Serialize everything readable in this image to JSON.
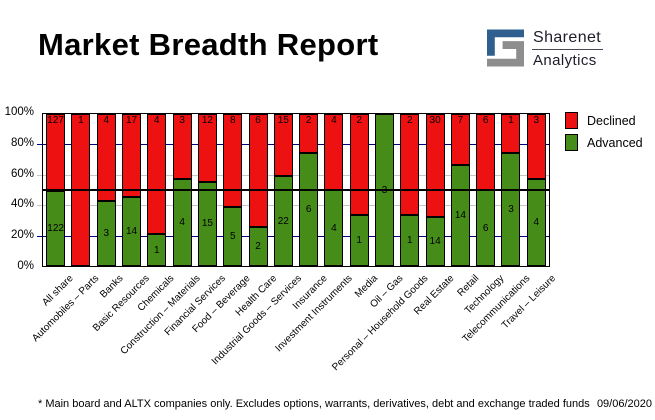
{
  "title": "Market Breadth Report",
  "logo": {
    "line1": "Sharenet",
    "line2": "Analytics",
    "blue": "#2f5f8f",
    "gray": "#8e8e8e"
  },
  "chart_data": {
    "type": "bar",
    "stacked": true,
    "stacking": "percent",
    "title": "Market Breadth Report",
    "categories": [
      "All share",
      "Automobiles – Parts",
      "Banks",
      "Basic Resources",
      "Chemicals",
      "Construction – Materials",
      "Financial Services",
      "Food – Beverage",
      "Health Care",
      "Industrial Goods – Services",
      "Insurance",
      "Investment Instruments",
      "Media",
      "Oil – Gas",
      "Personal – Household Goods",
      "Real Estate",
      "Retail",
      "Technology",
      "Telecommunications",
      "Travel – Leisure"
    ],
    "series": [
      {
        "name": "Declined",
        "color": "#ee1111",
        "values": [
          127,
          1,
          4,
          17,
          4,
          3,
          12,
          8,
          6,
          15,
          2,
          4,
          2,
          0,
          2,
          30,
          7,
          6,
          1,
          3
        ]
      },
      {
        "name": "Advanced",
        "color": "#468c19",
        "values": [
          122,
          0,
          3,
          14,
          1,
          4,
          15,
          5,
          2,
          22,
          6,
          4,
          1,
          3,
          1,
          14,
          14,
          6,
          3,
          4
        ]
      }
    ],
    "yticks": [
      "0%",
      "20%",
      "40%",
      "60%",
      "80%",
      "100%"
    ],
    "ylim": [
      0,
      100
    ],
    "gridlines": {
      "navy_levels": [
        20,
        80
      ],
      "silver_levels": [
        40,
        60
      ],
      "midline_level": 50,
      "navy_color": "#000080",
      "silver_color": "#c6c6c6",
      "midline_color": "#000000"
    },
    "legend_position": "right-top",
    "value_labels": "shown inside segments"
  },
  "footnote": {
    "text": "* Main board and ALTX companies only. Excludes options, warrants, derivatives, debt and exchange traded funds",
    "date": "09/06/2020"
  }
}
